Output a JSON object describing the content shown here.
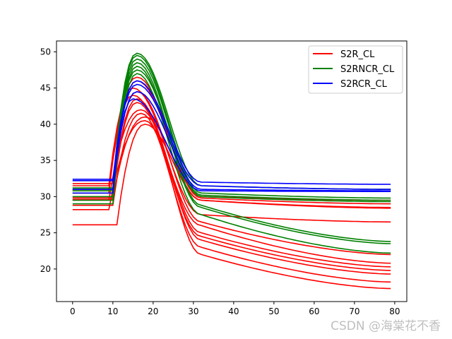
{
  "chart_data": {
    "type": "line",
    "title": "",
    "xlabel": "",
    "ylabel": "",
    "xlim": [
      -4,
      83
    ],
    "ylim": [
      15.5,
      51.5
    ],
    "xticks": [
      0,
      10,
      20,
      30,
      40,
      50,
      60,
      70,
      80
    ],
    "yticks": [
      20,
      25,
      30,
      35,
      40,
      45,
      50
    ],
    "grid": false,
    "legend_position": "top-right",
    "legend": [
      {
        "name": "S2R_CL",
        "color": "#ff0000"
      },
      {
        "name": "S2RNCR_CL",
        "color": "#008000"
      },
      {
        "name": "S2RCR_CL",
        "color": "#0000ff"
      }
    ],
    "series_groups": [
      {
        "name": "S2R_CL",
        "color": "#ff0000",
        "curves": [
          {
            "base": 26.1,
            "t0": 11,
            "peak": 40.0,
            "tp": 18,
            "mid": 29.5,
            "end": 28.4
          },
          {
            "base": 28.2,
            "t0": 9,
            "peak": 40.5,
            "tp": 18,
            "mid": 22.0,
            "end": 17.3
          },
          {
            "base": 28.8,
            "t0": 10,
            "peak": 41.5,
            "tp": 17,
            "mid": 23.0,
            "end": 18.2
          },
          {
            "base": 29.5,
            "t0": 9,
            "peak": 42.0,
            "tp": 17,
            "mid": 24.0,
            "end": 19.3
          },
          {
            "base": 29.8,
            "t0": 10,
            "peak": 43.0,
            "tp": 16,
            "mid": 24.5,
            "end": 19.8
          },
          {
            "base": 30.0,
            "t0": 10,
            "peak": 43.5,
            "tp": 16,
            "mid": 25.0,
            "end": 20.3
          },
          {
            "base": 30.5,
            "t0": 9,
            "peak": 44.0,
            "tp": 15,
            "mid": 26.0,
            "end": 20.8
          },
          {
            "base": 31.0,
            "t0": 10,
            "peak": 44.5,
            "tp": 16,
            "mid": 26.5,
            "end": 22.0
          },
          {
            "base": 31.5,
            "t0": 9,
            "peak": 45.0,
            "tp": 15,
            "mid": 27.5,
            "end": 26.5
          },
          {
            "base": 31.8,
            "t0": 10,
            "peak": 46.0,
            "tp": 16,
            "mid": 29.8,
            "end": 29.0
          },
          {
            "base": 29.6,
            "t0": 10,
            "peak": 41.0,
            "tp": 18,
            "mid": 29.5,
            "end": 28.5
          },
          {
            "base": 30.8,
            "t0": 9,
            "peak": 46.5,
            "tp": 16,
            "mid": 30.0,
            "end": 29.5
          }
        ]
      },
      {
        "name": "S2RNCR_CL",
        "color": "#008000",
        "curves": [
          {
            "base": 29.0,
            "t0": 10,
            "peak": 47.0,
            "tp": 16,
            "mid": 27.5,
            "end": 22.2
          },
          {
            "base": 29.5,
            "t0": 10,
            "peak": 48.0,
            "tp": 16,
            "mid": 28.5,
            "end": 23.5
          },
          {
            "base": 30.0,
            "t0": 10,
            "peak": 48.5,
            "tp": 16,
            "mid": 28.8,
            "end": 23.8
          },
          {
            "base": 30.5,
            "t0": 10,
            "peak": 49.0,
            "tp": 16,
            "mid": 30.2,
            "end": 29.5
          },
          {
            "base": 31.0,
            "t0": 10,
            "peak": 49.5,
            "tp": 16,
            "mid": 30.5,
            "end": 29.8
          },
          {
            "base": 31.2,
            "t0": 10,
            "peak": 49.8,
            "tp": 16,
            "mid": 31.5,
            "end": 31.0
          },
          {
            "base": 30.8,
            "t0": 10,
            "peak": 47.5,
            "tp": 16,
            "mid": 30.0,
            "end": 29.3
          }
        ]
      },
      {
        "name": "S2RCR_CL",
        "color": "#0000ff",
        "curves": [
          {
            "base": 30.5,
            "t0": 10,
            "peak": 43.5,
            "tp": 15,
            "mid": 30.8,
            "end": 30.7
          },
          {
            "base": 31.0,
            "t0": 10,
            "peak": 44.5,
            "tp": 16,
            "mid": 31.0,
            "end": 30.8
          },
          {
            "base": 32.2,
            "t0": 10,
            "peak": 45.5,
            "tp": 16,
            "mid": 31.5,
            "end": 31.0
          },
          {
            "base": 32.4,
            "t0": 10,
            "peak": 46.0,
            "tp": 16,
            "mid": 32.0,
            "end": 31.7
          }
        ]
      }
    ],
    "x_range": [
      0,
      79
    ]
  },
  "watermark": "CSDN @海棠花不香"
}
